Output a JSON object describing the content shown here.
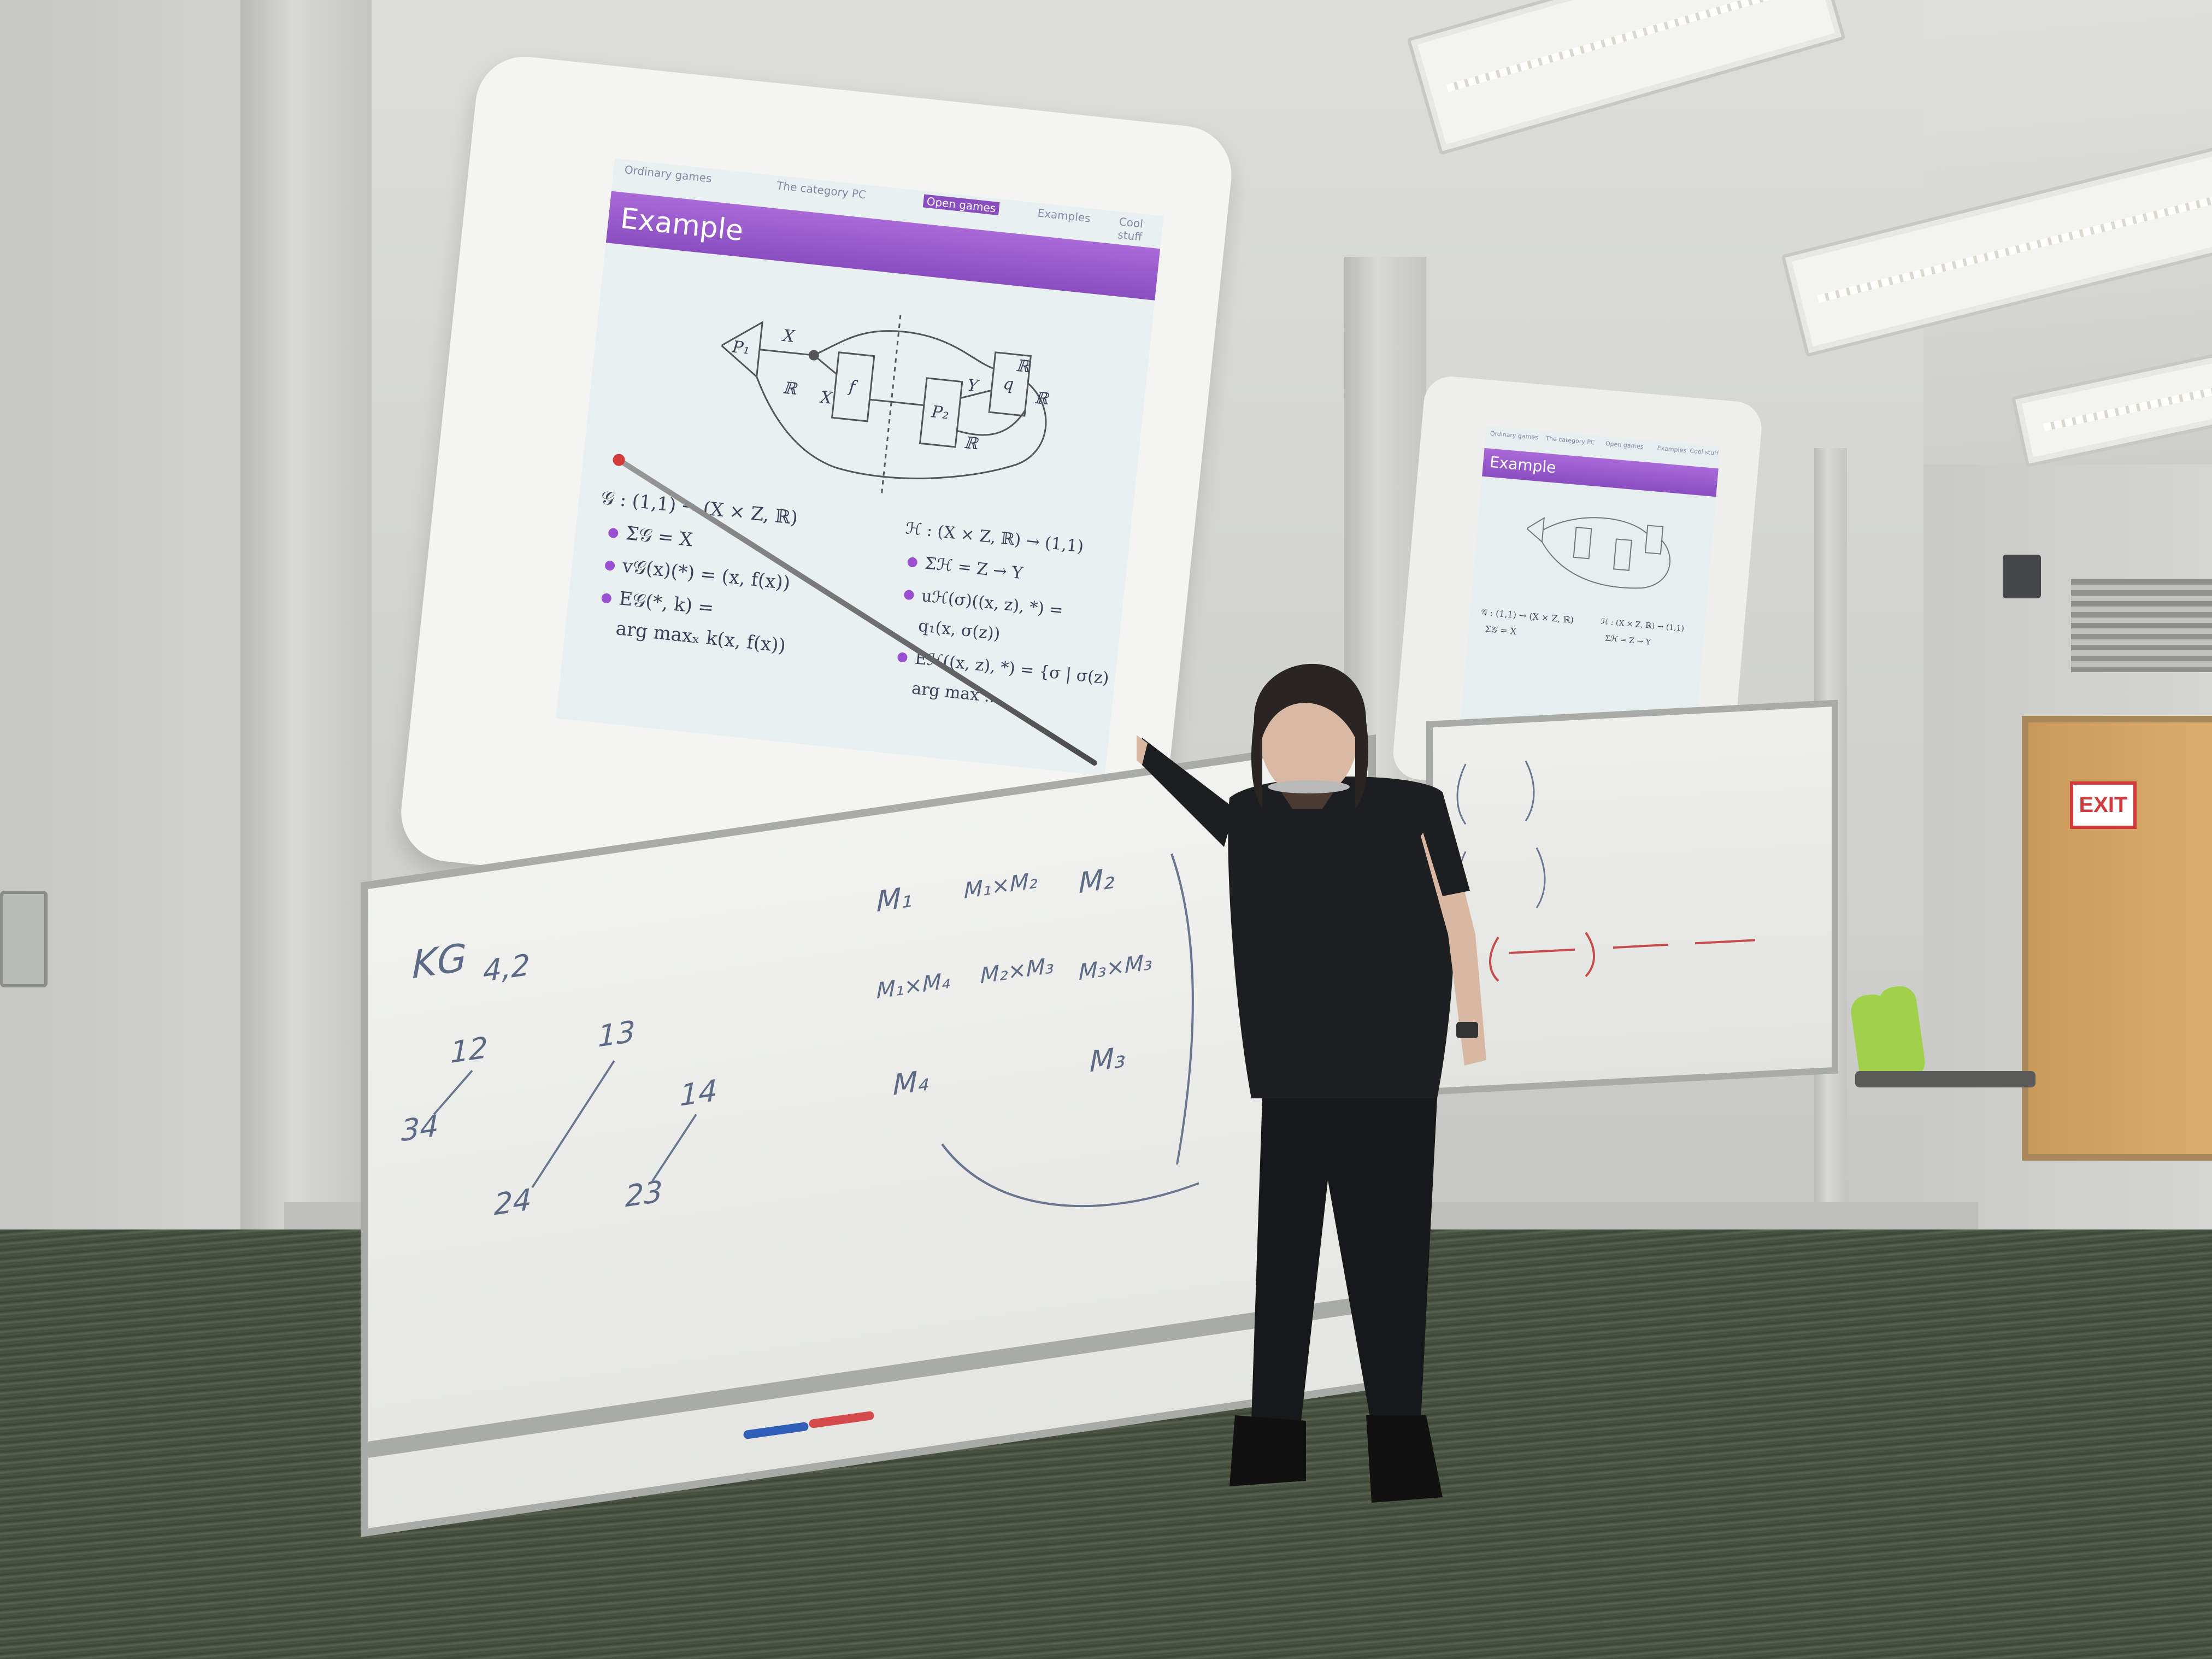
{
  "main_slide": {
    "nav_sections": [
      "Ordinary games",
      "The category PC",
      "Open games",
      "Examples",
      "Cool stuff"
    ],
    "frame_title": "Example",
    "diagram_labels": [
      "P₁",
      "X",
      "X",
      "f",
      "P₂",
      "Y",
      "ℝ",
      "q",
      "ℝ",
      "ℝ",
      "ℝ"
    ],
    "left_lines": [
      "𝒢 : (1,1) → (X × Z, ℝ)",
      "Σ𝒢 = X",
      "v𝒢(x)(*) = (x, f(x))",
      "E𝒢(*, k) =",
      "arg maxₓ k(x, f(x))"
    ],
    "right_lines": [
      "ℋ : (X × Z, ℝ) → (1,1)",
      "Σℋ = Z → Y",
      "uℋ(σ)((x, z), *) =",
      "q₁(x, σ(z))",
      "Eℋ((x, z), *) = {σ | σ(z) ∈",
      "arg max ..."
    ]
  },
  "second_slide": {
    "nav_sections": [
      "Ordinary games",
      "The category PC",
      "Open games",
      "Examples",
      "Cool stuff"
    ],
    "frame_title": "Example"
  },
  "whiteboard_left": {
    "notes": [
      "KG",
      "4,2",
      "12",
      "13",
      "34",
      "14",
      "24",
      "23",
      "M₁",
      "M₁×M₂",
      "M₂",
      "M₁×M₄",
      "M₂×M₃",
      "M₃×M₃",
      "M₄",
      "M₃"
    ]
  },
  "exit_sign": "EXIT",
  "colors": {
    "slide_bar": "#9a5ccc",
    "bullet": "#9a4fd3",
    "marker_blue": "#5c6a86",
    "marker_red": "#c84b4b"
  }
}
